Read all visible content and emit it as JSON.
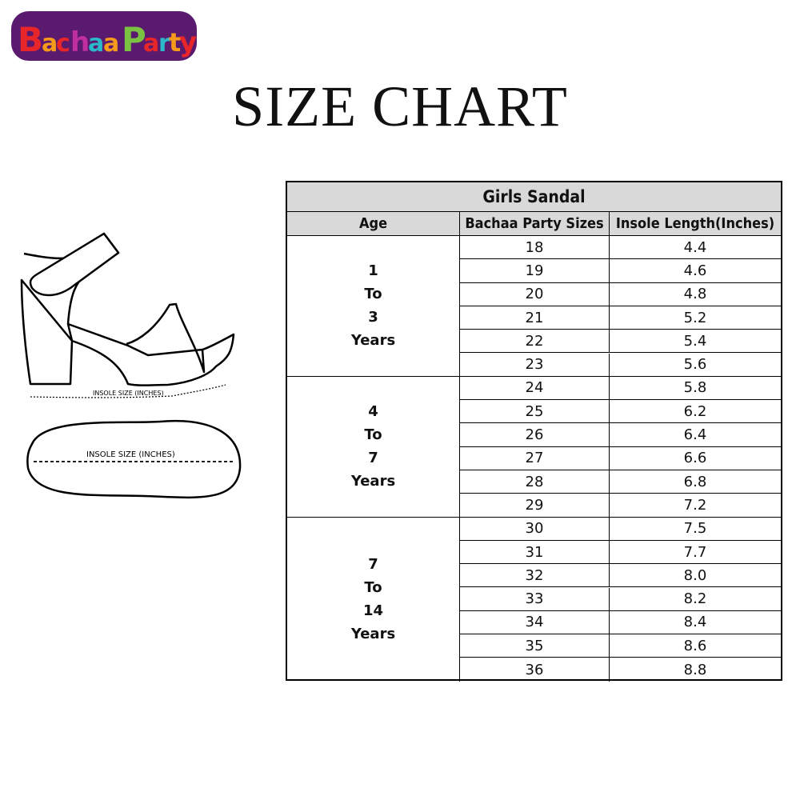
{
  "logo": {
    "text": "BachaaParty",
    "colors": [
      "#e8262a",
      "#c02ea0",
      "#2bb8c8",
      "#f59a1a",
      "#7cc242",
      "#5a1a6e"
    ]
  },
  "title": "SIZE CHART",
  "illustration": {
    "side_label": "INSOLE SIZE (INCHES)",
    "sole_label": "INSOLE SIZE (INCHES)"
  },
  "table": {
    "title": "Girls Sandal",
    "headers": [
      "Age",
      "Bachaa Party Sizes",
      "Insole Length(Inches)"
    ],
    "groups": [
      {
        "age": [
          "1",
          "To",
          "3",
          "Years"
        ],
        "rows": [
          [
            "18",
            "4.4"
          ],
          [
            "19",
            "4.6"
          ],
          [
            "20",
            "4.8"
          ],
          [
            "21",
            "5.2"
          ],
          [
            "22",
            "5.4"
          ],
          [
            "23",
            "5.6"
          ]
        ]
      },
      {
        "age": [
          "4",
          "To",
          "7",
          "Years"
        ],
        "rows": [
          [
            "24",
            "5.8"
          ],
          [
            "25",
            "6.2"
          ],
          [
            "26",
            "6.4"
          ],
          [
            "27",
            "6.6"
          ],
          [
            "28",
            "6.8"
          ],
          [
            "29",
            "7.2"
          ]
        ]
      },
      {
        "age": [
          "7",
          "To",
          "14",
          "Years"
        ],
        "rows": [
          [
            "30",
            "7.5"
          ],
          [
            "31",
            "7.7"
          ],
          [
            "32",
            "8.0"
          ],
          [
            "33",
            "8.2"
          ],
          [
            "34",
            "8.4"
          ],
          [
            "35",
            "8.6"
          ],
          [
            "36",
            "8.8"
          ]
        ]
      }
    ]
  }
}
